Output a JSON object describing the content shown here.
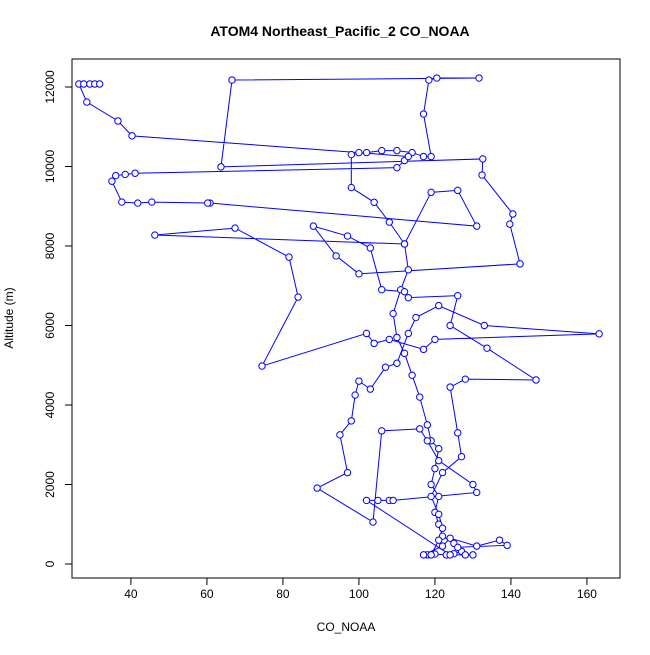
{
  "chart_data": {
    "type": "line",
    "title": "ATOM4 Northeast_Pacific_2 CO_NOAA",
    "x_label": "CO_NOAA",
    "y_label": "Altitude (m)",
    "color": "#0000ff",
    "xlim": [
      24.5,
      168.7
    ],
    "ylim": [
      -352,
      12704
    ],
    "xticks": [
      40,
      60,
      80,
      100,
      120,
      140,
      160
    ],
    "yticks": [
      0,
      2000,
      4000,
      6000,
      8000,
      10000,
      12000
    ],
    "x": [
      118,
      120,
      123,
      125,
      127,
      125,
      122,
      121,
      120,
      121,
      119,
      120,
      121,
      119,
      118,
      116,
      114,
      112,
      110,
      109,
      111,
      113,
      112,
      108,
      104,
      98,
      98,
      102,
      106,
      110,
      114,
      117,
      119,
      117,
      118.4,
      120.5,
      131.6,
      66.6,
      63.7,
      132.6,
      132.4,
      140.5,
      139.7,
      142.4,
      100,
      94,
      88,
      97,
      103,
      106,
      112,
      113,
      126,
      124,
      133.7,
      146.6,
      128,
      124,
      126,
      127,
      122,
      119,
      121,
      122,
      121,
      119,
      117,
      122,
      124,
      131,
      137,
      139,
      126,
      128,
      130,
      124,
      102,
      105,
      108,
      109,
      131,
      130,
      121,
      118,
      116,
      106,
      103.7,
      89,
      97,
      95,
      98,
      99,
      100,
      103,
      107,
      110,
      113,
      115,
      121,
      133,
      163.2,
      120,
      117,
      108,
      104,
      102,
      74.5,
      84,
      81.6,
      67.4,
      46.3,
      112,
      119,
      126,
      131,
      60.8,
      60.2,
      45.5,
      41.8,
      37.6,
      35,
      36,
      38.5,
      41.1,
      110,
      112,
      113,
      100,
      40.3,
      36.6,
      28.4,
      26.3,
      27.6,
      29.2,
      30.5,
      31.8
    ],
    "y": [
      230,
      250,
      230,
      260,
      320,
      520,
      700,
      1000,
      1300,
      1700,
      2000,
      2400,
      2900,
      3100,
      3500,
      4200,
      4750,
      5300,
      5700,
      6300,
      6900,
      7400,
      8050,
      8600,
      9100,
      9470,
      10300,
      10350,
      10400,
      10400,
      10350,
      10250,
      10250,
      11320,
      12175,
      12225,
      12225,
      12175,
      9990,
      10190,
      9785,
      8805,
      8550,
      7550,
      7300,
      7750,
      8500,
      8250,
      7950,
      6900,
      6850,
      6700,
      6750,
      6000,
      5430,
      4630,
      4650,
      4450,
      3300,
      2700,
      2300,
      1700,
      1250,
      900,
      600,
      230,
      230,
      450,
      650,
      450,
      600,
      470,
      420,
      230,
      230,
      230,
      1600,
      1600,
      1600,
      1600,
      1800,
      2000,
      2600,
      3100,
      3400,
      3350,
      1055,
      1910,
      2300,
      3250,
      3600,
      4250,
      4600,
      4400,
      4950,
      5050,
      5800,
      6200,
      6500,
      6000,
      5790,
      5650,
      5400,
      5650,
      5550,
      5800,
      4980,
      6715,
      7720,
      8450,
      8275,
      8050,
      9350,
      9400,
      8500,
      9080,
      9080,
      9105,
      9080,
      9105,
      9630,
      9770,
      9800,
      9830,
      9970,
      10150,
      10250,
      10350,
      10770,
      11145,
      11620,
      12075,
      12075,
      12075,
      12075,
      12075
    ]
  }
}
